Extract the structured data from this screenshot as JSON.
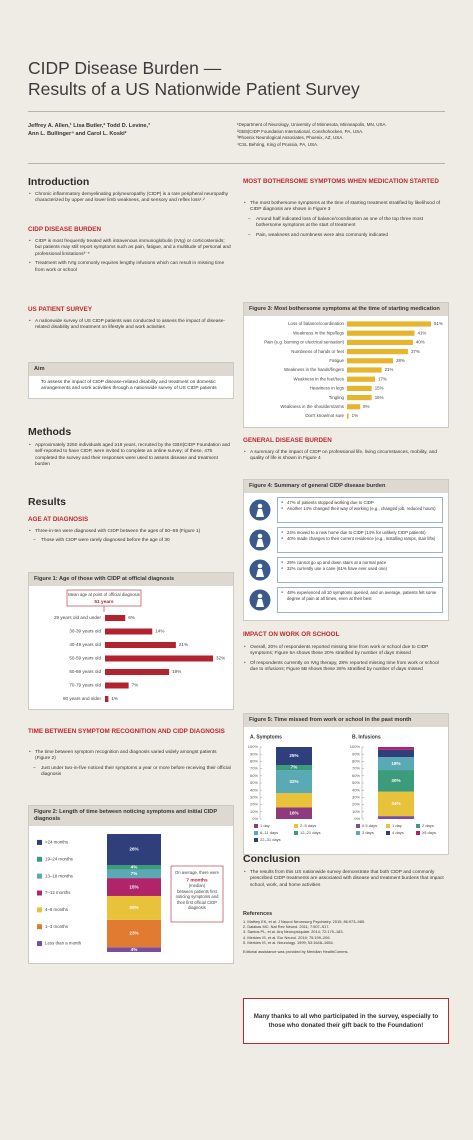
{
  "header": {
    "title": [
      "CIDP Disease Burden —",
      "Results of a US Nationwide Patient Survey"
    ],
    "authors": [
      "Jeffrey A. Allen,¹ Lisa Butler,² Todd D. Levine,³",
      "Ann L. Bullinger⁴ and Carol L. Koski²"
    ],
    "affiliations": [
      "¹Department of Neurology, University of Minnesota, Minneapolis, MN, USA.",
      "²GBS|CIDP Foundation International, Conshohocken, PA, USA.",
      "³Phoenix Neurological Associates, Phoenix, AZ, USA.",
      "⁴CSL Behring, King of Prussia, PA, USA."
    ]
  },
  "introduction": {
    "heading": "Introduction",
    "bullets": [
      "Chronic inflammatory demyelinating polyneuropathy (CIDP) is a rare peripheral neuropathy characterized by upper and lower limb weakness, and sensory and reflex loss¹˒²"
    ]
  },
  "disease_burden": {
    "heading": "CIDP DISEASE BURDEN",
    "bullets": [
      "CIDP is most frequently treated with intravenous immunoglobulin (IVIg) or corticosteroids; but patients may still report symptoms such as pain, fatigue, and a multitude of personal and professional limitations³⁻⁵",
      "Treatment with IVIg commonly requires lengthy infusions which can result in missing time from work or school"
    ]
  },
  "patient_survey": {
    "heading": "US PATIENT SURVEY",
    "bullets": [
      "A nationwide survey of US CIDP patients was conducted to assess the impact of disease-related disability and treatment on lifestyle and work activities"
    ]
  },
  "aim": {
    "heading": "Aim",
    "text": "To assess the impact of CIDP disease-related disability and treatment on domestic arrangements and work activities through a nationwide survey of US CIDP patients"
  },
  "methods": {
    "heading": "Methods",
    "bullets": [
      "Approximately 3250 individuals aged ≥18 years, recruited by the GBS|CIDP Foundation and self-reported to have CIDP, were invited to complete an online survey; of these, 475 completed the survey and their responses were used to assess disease and treatment burden"
    ]
  },
  "results": {
    "heading": "Results"
  },
  "age_at_diagnosis": {
    "heading": "AGE AT DIAGNOSIS",
    "bullets": [
      "Three-in-ten were diagnosed with CIDP between the ages of 50–59 (Figure 1)"
    ],
    "sub_bullets": [
      "Those with CIDP were rarely diagnosed before the age of 30"
    ]
  },
  "figure1": {
    "type": "bar",
    "title": "Figure 1: Age of those with CIDP at official diagnosis",
    "annotation": [
      "Mean age at point of official diagnosis",
      "51 years"
    ],
    "categories": [
      "29 years old and under",
      "30-39 years old",
      "40-49 years old",
      "50-59 years old",
      "60-69 years old",
      "70-79 years old",
      "80 years and older"
    ],
    "values": [
      6,
      14,
      21,
      32,
      19,
      7,
      1
    ],
    "value_labels": [
      "6%",
      "14%",
      "21%",
      "32%",
      "19%",
      "7%",
      "1%"
    ],
    "color": "#b3232f"
  },
  "time_to_diagnosis": {
    "heading": "TIME BETWEEN SYMPTOM RECOGNITION AND CIDP DIAGNOSIS",
    "bullets": [
      "The time between symptom recognition and diagnosis varied widely amongst patients (Figure 2)"
    ],
    "sub_bullets": [
      "Just under two-in-five noticed their symptoms a year or more before receiving their official diagnosis"
    ]
  },
  "figure2": {
    "type": "stacked_bar",
    "title": "Figure 2: Length of time between noticing symptoms and initial CIDP diagnosis",
    "annotation": [
      "On average, there were",
      "7 months",
      "(median)",
      "between patients first noticing symptoms and their first official CIDP diagnosis"
    ],
    "series": [
      {
        "name": "Less than a month",
        "color": "#7b4e9c",
        "value": 4,
        "value_label": "4%"
      },
      {
        "name": "1–3 months",
        "color": "#e07b31",
        "value": 23,
        "value_label": "23%"
      },
      {
        "name": "4–6 months",
        "color": "#e9c23b",
        "value": 20,
        "value_label": "20%"
      },
      {
        "name": "7–12 months",
        "color": "#b0246a",
        "value": 15,
        "value_label": "15%"
      },
      {
        "name": "13–18 months",
        "color": "#5aaab5",
        "value": 7,
        "value_label": "7%"
      },
      {
        "name": "19–24 months",
        "color": "#3b9b7b",
        "value": 4,
        "value_label": "4%"
      },
      {
        "name": ">24 months",
        "color": "#2e3f7c",
        "value": 26,
        "value_label": "26%"
      }
    ]
  },
  "bothersome_symptoms": {
    "heading": "MOST BOTHERSOME SYMPTOMS WHEN MEDICATION STARTED",
    "bullets": [
      "The most bothersome symptoms at the time of starting treatment stratified by likelihood of CIDP diagnosis are shown in Figure 3"
    ],
    "sub_bullets": [
      "Around half indicated loss of balance/coordination as one of the top three most bothersome symptoms at the start of treatment",
      "Pain, weakness and numbness were also commonly indicated"
    ]
  },
  "figure3": {
    "type": "bar",
    "title": "Figure 3: Most bothersome symptoms at the time of starting medication",
    "categories": [
      "Loss of balance/coordination",
      "Weakness in the hips/legs",
      "Pain (e.g. burning or electrical sensation)",
      "Numbness of hands or feet",
      "Fatigue",
      "Weakness in the hands/fingers",
      "Weakness in the feet/toes",
      "Heaviness in legs",
      "Tingling",
      "Weakness in the shoulders/arms",
      "Don't know/not sure"
    ],
    "values": [
      51,
      41,
      40,
      37,
      28,
      21,
      17,
      15,
      15,
      8,
      1
    ],
    "value_labels": [
      "51%",
      "41%",
      "40%",
      "37%",
      "28%",
      "21%",
      "17%",
      "15%",
      "15%",
      "8%",
      "1%"
    ],
    "color": "#e6b52d"
  },
  "general_burden": {
    "heading": "GENERAL DISEASE BURDEN",
    "bullets": [
      "A summary of the impact of CIDP on professional life, living circumstances, mobility, and quality of life is shown in Figure 4"
    ]
  },
  "figure4": {
    "title": "Figure 4: Summary of general CIDP disease burden",
    "rows": [
      [
        "47% of patients stopped working due to CIDP",
        "Another 14% changed their way of working (e.g., changed job, reduced hours)"
      ],
      [
        "24% moved to a new home due to CIDP (14% for unlikely CIDP patients)",
        "40% made changes to their current residence (e.g., installing ramps, stair lifts)"
      ],
      [
        "29% cannot go up and down stairs at a normal pace",
        "32% currently use a cane (61% have ever used one)"
      ],
      [
        "48% experienced all 10 symptoms queried, and on average, patients felt some degree of pain at all times, even at their best"
      ]
    ]
  },
  "work_or_school": {
    "heading": "IMPACT ON WORK OR SCHOOL",
    "bullets": [
      "Overall, 20% of respondents reported missing time from work or school due to CIDP symptoms; Figure 5A shows these 20% stratified by number of days missed",
      "Of respondents currently on IVIg therapy, 28% reported missing time from work or school due to infusions; Figure 5B shows these 28% stratified by number of days missed"
    ]
  },
  "figure5": {
    "type": "stacked_bar",
    "title": "Figure 5: Time missed from work or school in the past month",
    "ylim": [
      0,
      100
    ],
    "yticks": [
      {
        "value": 0,
        "label": "0%"
      },
      {
        "value": 10,
        "label": "10%"
      },
      {
        "value": 20,
        "label": "20%"
      },
      {
        "value": 30,
        "label": "30%"
      },
      {
        "value": 40,
        "label": "40%"
      },
      {
        "value": 50,
        "label": "50%"
      },
      {
        "value": 60,
        "label": "60%"
      },
      {
        "value": 70,
        "label": "70%"
      },
      {
        "value": 80,
        "label": "80%"
      },
      {
        "value": 90,
        "label": "90%"
      },
      {
        "value": 100,
        "label": "100%"
      }
    ],
    "panels": [
      {
        "title": "A. Symptoms",
        "series": [
          {
            "name": "1 day",
            "color": "#8e3a7c",
            "value": 16,
            "value_label": "16%"
          },
          {
            "name": "2–5 days",
            "color": "#e9c23b",
            "value": 20
          },
          {
            "name": "6–11 days",
            "color": "#5aaab5",
            "value": 32,
            "value_label": "32%"
          },
          {
            "name": "12–21 days",
            "color": "#3b9b7b",
            "value": 7,
            "value_label": "7%"
          },
          {
            "name": "22–31 days",
            "color": "#2e3f7c",
            "value": 25,
            "value_label": "25%"
          }
        ]
      },
      {
        "title": "B. Infusions",
        "series": [
          {
            "name": "0.5 days",
            "color": "#7b4e9c",
            "value": 4
          },
          {
            "name": "1 day",
            "color": "#e9c23b",
            "value": 34,
            "value_label": "34%"
          },
          {
            "name": "2 days",
            "color": "#3b9b7b",
            "value": 30,
            "value_label": "30%"
          },
          {
            "name": "3 days",
            "color": "#5aaab5",
            "value": 18,
            "value_label": "18%"
          },
          {
            "name": "4 days",
            "color": "#2e3f7c",
            "value": 10
          },
          {
            "name": "≥5 days",
            "color": "#b0246a",
            "value": 4
          }
        ]
      }
    ]
  },
  "conclusion": {
    "heading": "Conclusion",
    "bullets": [
      "The results from this US nationwide survey demonstrate that both CIDP and commonly prescribed CIDP treatments are associated with disease and treatment burdens that impact school, work, and home activities"
    ]
  },
  "references": {
    "heading": "References",
    "items": [
      "1. Mathey EK, et al. J Neurol Neurosurg Psychiatry. 2015; 86:973–985.",
      "2. Dalakas MC. Nat Rev Neurol. 2011; 7:507–517.",
      "3. Santos PL, et al. Arq Neuropsiquiatr. 2014; 72:179–183.",
      "4. Merkies IS, et al. Eur Neurol. 2016; 75:199–206.",
      "5. Merkies IS, et al. Neurology. 1999; 53:1648–1654."
    ],
    "note": "Editorial assistance was provided by Meridian HealthComms."
  },
  "acknowledgement": "Many thanks to all who participated in the survey, especially to those who donated their gift back to the Foundation!"
}
